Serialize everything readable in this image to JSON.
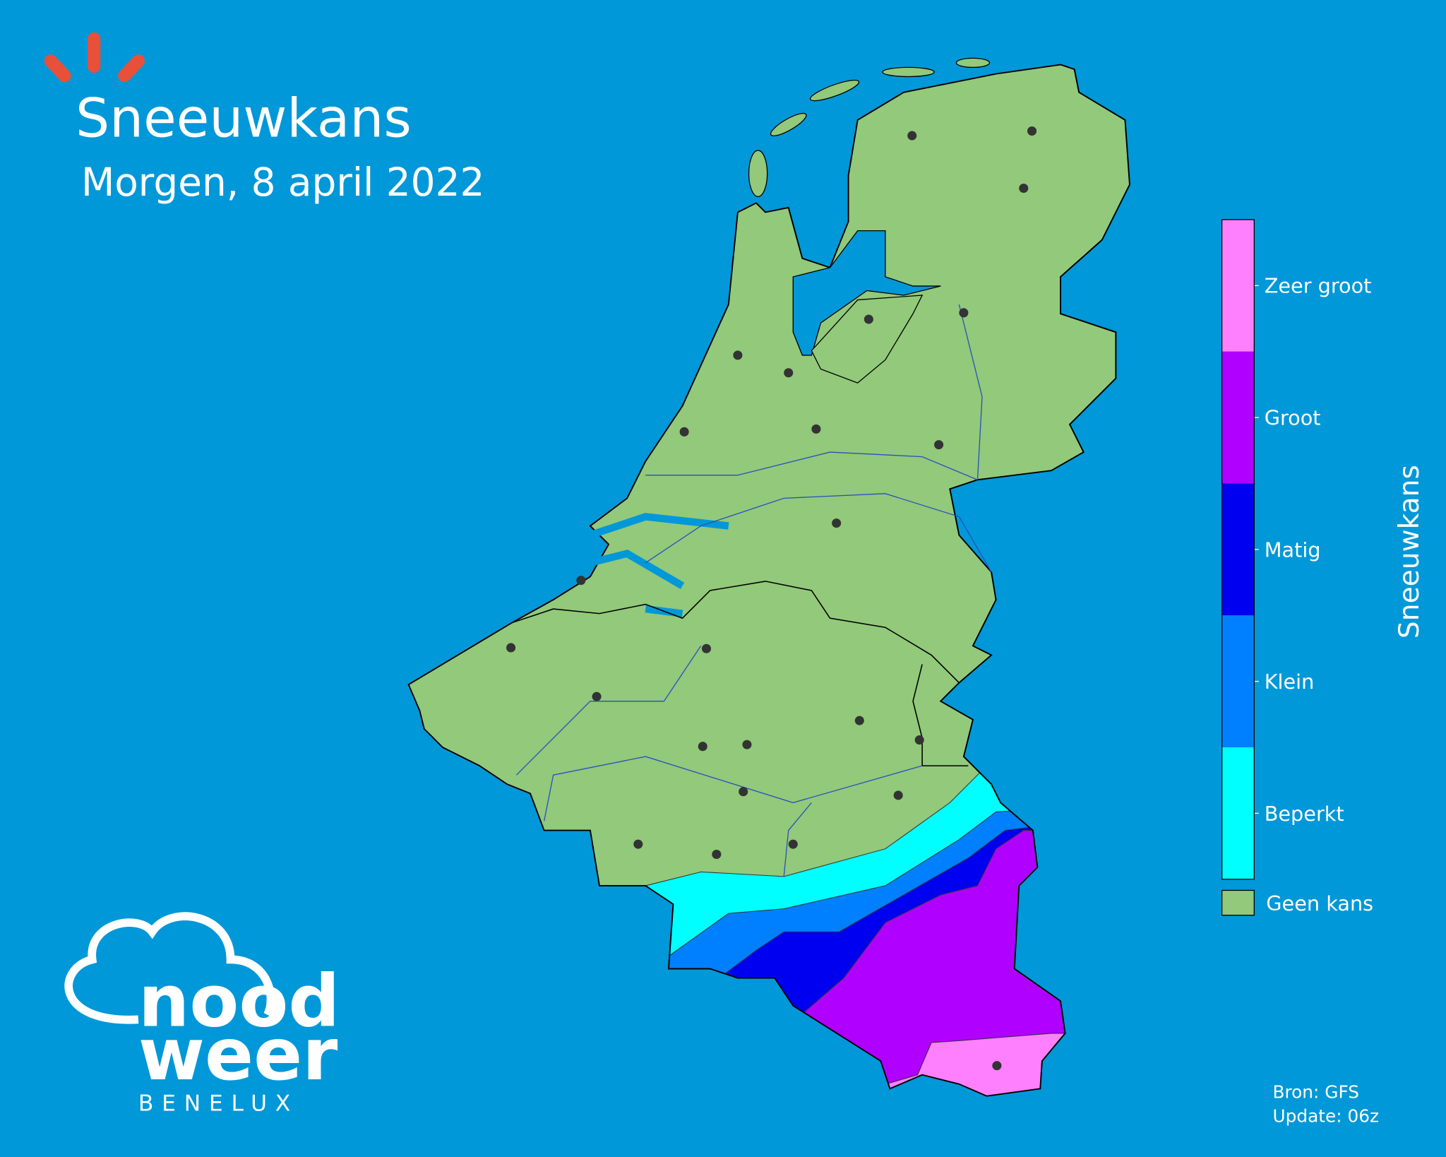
{
  "header": {
    "title": "Sneeuwkans",
    "subtitle": "Morgen, 8 april 2022"
  },
  "legend": {
    "title": "Sneeuwkans",
    "items": [
      {
        "label": "Zeer groot",
        "color": "#ff80ff"
      },
      {
        "label": "Groot",
        "color": "#b000ff"
      },
      {
        "label": "Matig",
        "color": "#0000f0"
      },
      {
        "label": "Klein",
        "color": "#0080ff"
      },
      {
        "label": "Beperkt",
        "color": "#00ffff"
      }
    ],
    "none": {
      "label": "Geen kans",
      "color": "#92c97a"
    }
  },
  "footer": {
    "source": "Bron: GFS",
    "update": "Update: 06z"
  },
  "logo": {
    "line1": "nood",
    "line2": "weer",
    "line3": "BENELUX"
  }
}
